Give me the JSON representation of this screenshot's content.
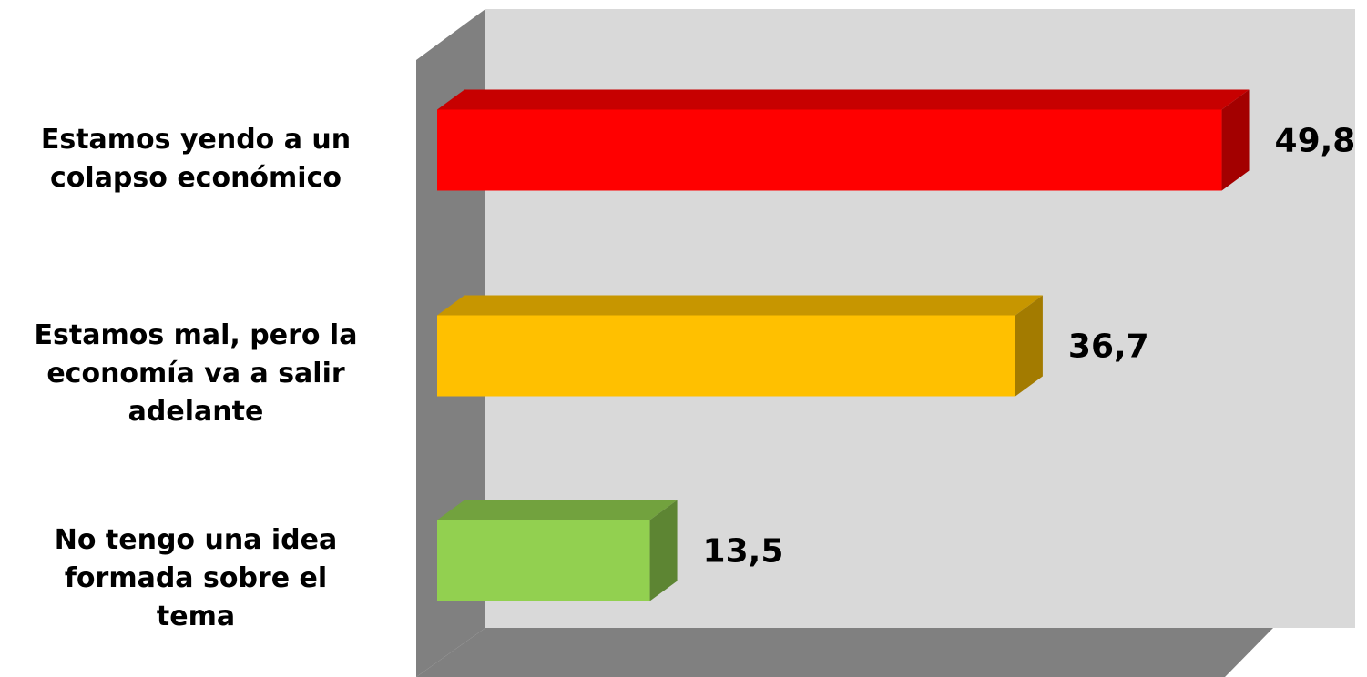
{
  "chart_data": {
    "type": "bar",
    "orientation": "horizontal",
    "three_d": true,
    "categories": [
      "Estamos yendo a un colapso económico",
      "Estamos mal, pero la economía va a salir adelante",
      "No tengo una idea formada sobre el tema"
    ],
    "category_lines": [
      [
        "Estamos yendo a un",
        "colapso económico"
      ],
      [
        "Estamos mal, pero la",
        "economía va a salir",
        "adelante"
      ],
      [
        "No tengo una idea",
        "formada sobre el",
        "tema"
      ]
    ],
    "values": [
      49.8,
      36.7,
      13.5
    ],
    "value_labels": [
      "49,8",
      "36,7",
      "13,5"
    ],
    "colors": [
      "#ff0000",
      "#ffc000",
      "#92d050"
    ],
    "xlim": [
      0,
      50
    ],
    "grid": false,
    "legend": "none",
    "title": "",
    "xlabel": "",
    "ylabel": ""
  }
}
